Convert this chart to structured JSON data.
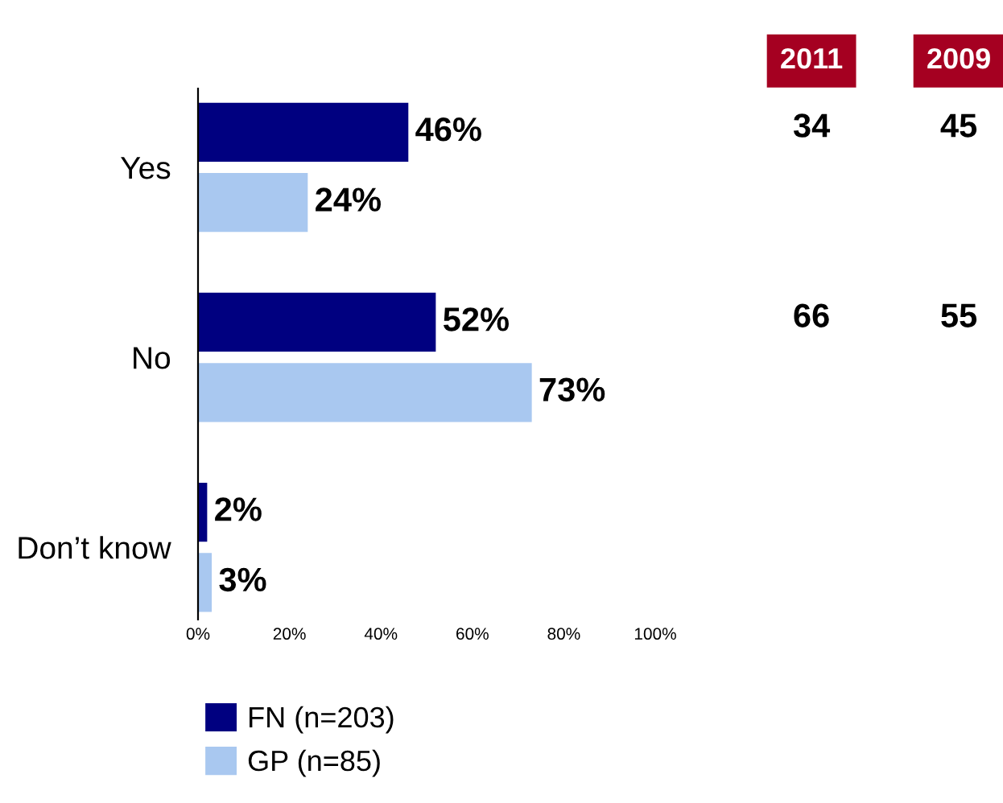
{
  "chart_data": [
    {
      "type": "bar",
      "orientation": "horizontal",
      "categories": [
        "Yes",
        "No",
        "Don’t know"
      ],
      "series": [
        {
          "name": "FN (n=203)",
          "color": "#000080",
          "values": [
            46,
            52,
            2
          ],
          "value_labels": [
            "46%",
            "52%",
            "2%"
          ]
        },
        {
          "name": "GP (n=85)",
          "color": "#a9c8f0",
          "values": [
            24,
            73,
            3
          ],
          "value_labels": [
            "24%",
            "73%",
            "3%"
          ]
        }
      ],
      "xlim": [
        0,
        100
      ],
      "xticks": [
        {
          "value": 0,
          "label": "0%"
        },
        {
          "value": 20,
          "label": "20%"
        },
        {
          "value": 40,
          "label": "40%"
        },
        {
          "value": 60,
          "label": "60%"
        },
        {
          "value": 80,
          "label": "80%"
        },
        {
          "value": 100,
          "label": "100%"
        }
      ],
      "grid": false,
      "legend": "bottom"
    },
    {
      "type": "other",
      "categories": [
        "2011",
        "2009"
      ],
      "color": "#a50021",
      "annotations": [
        "34",
        "45",
        "66",
        "55"
      ]
    }
  ]
}
